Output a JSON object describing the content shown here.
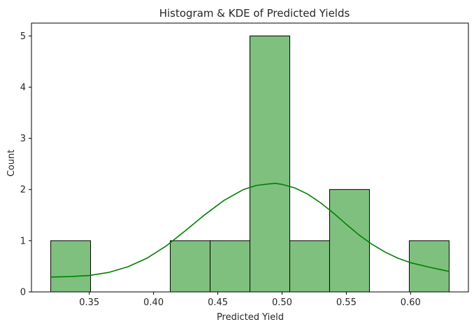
{
  "chart_data": {
    "type": "bar",
    "title": "Histogram & KDE of Predicted Yields",
    "xlabel": "Predicted Yield",
    "ylabel": "Count",
    "xlim": [
      0.305,
      0.645
    ],
    "ylim": [
      0,
      5.25
    ],
    "xticks": [
      0.35,
      0.4,
      0.45,
      0.5,
      0.55,
      0.6
    ],
    "xtick_labels": [
      "0.35",
      "0.40",
      "0.45",
      "0.50",
      "0.55",
      "0.60"
    ],
    "yticks": [
      0,
      1,
      2,
      3,
      4,
      5
    ],
    "ytick_labels": [
      "0",
      "1",
      "2",
      "3",
      "4",
      "5"
    ],
    "grid": false,
    "bar_color": "#7fc07f",
    "bar_edge_color": "#000000",
    "line_color": "#008000",
    "bins": [
      {
        "x0": 0.32,
        "x1": 0.351,
        "count": 1
      },
      {
        "x0": 0.351,
        "x1": 0.382,
        "count": 0
      },
      {
        "x0": 0.382,
        "x1": 0.413,
        "count": 0
      },
      {
        "x0": 0.413,
        "x1": 0.444,
        "count": 1
      },
      {
        "x0": 0.444,
        "x1": 0.475,
        "count": 1
      },
      {
        "x0": 0.475,
        "x1": 0.506,
        "count": 5
      },
      {
        "x0": 0.506,
        "x1": 0.537,
        "count": 1
      },
      {
        "x0": 0.537,
        "x1": 0.568,
        "count": 2
      },
      {
        "x0": 0.568,
        "x1": 0.599,
        "count": 0
      },
      {
        "x0": 0.599,
        "x1": 0.63,
        "count": 1
      }
    ],
    "kde": {
      "x": [
        0.32,
        0.335,
        0.35,
        0.365,
        0.38,
        0.395,
        0.41,
        0.425,
        0.44,
        0.455,
        0.47,
        0.48,
        0.49,
        0.495,
        0.5,
        0.51,
        0.52,
        0.53,
        0.54,
        0.55,
        0.56,
        0.57,
        0.58,
        0.59,
        0.6,
        0.615,
        0.63
      ],
      "y": [
        0.29,
        0.3,
        0.32,
        0.38,
        0.49,
        0.66,
        0.9,
        1.2,
        1.51,
        1.79,
        2.0,
        2.08,
        2.11,
        2.12,
        2.1,
        2.03,
        1.91,
        1.74,
        1.54,
        1.32,
        1.11,
        0.93,
        0.78,
        0.66,
        0.57,
        0.48,
        0.4
      ]
    }
  }
}
